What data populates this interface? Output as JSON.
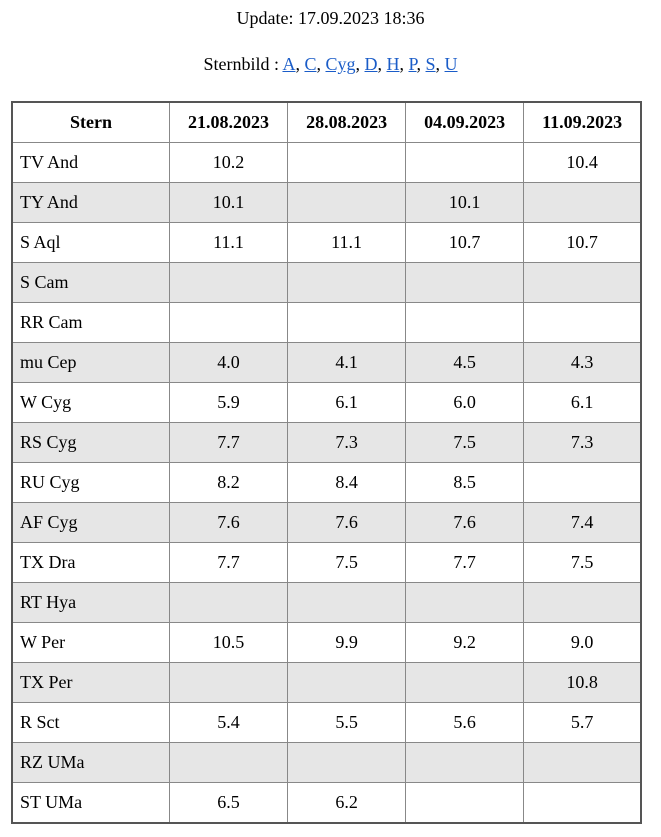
{
  "update": "Update: 17.09.2023 18:36",
  "sternbild": {
    "label": "Sternbild :",
    "separator": ",",
    "links": [
      "A",
      "C",
      "Cyg",
      "D",
      "H",
      "P",
      "S",
      "U"
    ]
  },
  "table": {
    "header": [
      "Stern",
      "21.08.2023",
      "28.08.2023",
      "04.09.2023",
      "11.09.2023"
    ],
    "rows": [
      [
        "TV And",
        "10.2",
        null,
        null,
        "10.4"
      ],
      [
        "TY And",
        "10.1",
        null,
        "10.1",
        null
      ],
      [
        "S Aql",
        "11.1",
        "11.1",
        "10.7",
        "10.7"
      ],
      [
        "S Cam",
        null,
        null,
        null,
        null
      ],
      [
        "RR Cam",
        null,
        null,
        null,
        null
      ],
      [
        "mu Cep",
        "4.0",
        "4.1",
        "4.5",
        "4.3"
      ],
      [
        "W Cyg",
        "5.9",
        "6.1",
        "6.0",
        "6.1"
      ],
      [
        "RS Cyg",
        "7.7",
        "7.3",
        "7.5",
        "7.3"
      ],
      [
        "RU Cyg",
        "8.2",
        "8.4",
        "8.5",
        null
      ],
      [
        "AF Cyg",
        "7.6",
        "7.6",
        "7.6",
        "7.4"
      ],
      [
        "TX Dra",
        "7.7",
        "7.5",
        "7.7",
        "7.5"
      ],
      [
        "RT Hya",
        null,
        null,
        null,
        null
      ],
      [
        "W Per",
        "10.5",
        "9.9",
        "9.2",
        "9.0"
      ],
      [
        "TX Per",
        null,
        null,
        null,
        "10.8"
      ],
      [
        "R Sct",
        "5.4",
        "5.5",
        "5.6",
        "5.7"
      ],
      [
        "RZ UMa",
        null,
        null,
        null,
        null
      ],
      [
        "ST UMa",
        "6.5",
        "6.2",
        null,
        null
      ]
    ]
  }
}
